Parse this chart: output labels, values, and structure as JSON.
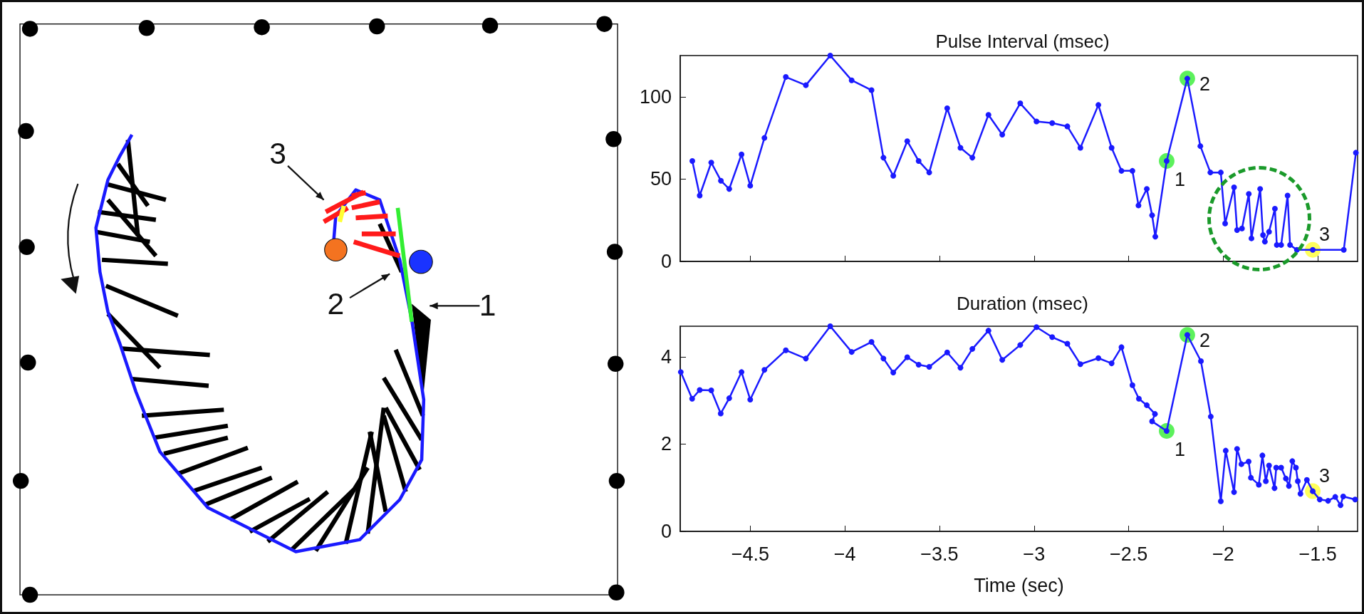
{
  "chart_data": [
    {
      "type": "other",
      "annotations": [
        "3",
        "2",
        "1"
      ]
    },
    {
      "type": "line",
      "title": "Pulse Interval (msec)",
      "marker": "circle",
      "tick_labels": "y",
      "xlim": [
        -4.87,
        -1.29
      ],
      "xticks": [
        -4.5,
        -4,
        -3.5,
        -3,
        -2.5,
        -2,
        -1.5
      ],
      "ylim": [
        0,
        125
      ],
      "yticks": [
        0,
        50,
        100
      ],
      "series": [
        {
          "color": "#1a1aff",
          "x": [
            -4.806,
            -4.767,
            -4.706,
            -4.655,
            -4.611,
            -4.546,
            -4.5,
            -4.425,
            -4.312,
            -4.206,
            -4.077,
            -3.964,
            -3.859,
            -3.796,
            -3.744,
            -3.67,
            -3.61,
            -3.554,
            -3.459,
            -3.389,
            -3.326,
            -3.241,
            -3.168,
            -3.073,
            -2.987,
            -2.904,
            -2.824,
            -2.755,
            -2.66,
            -2.59,
            -2.538,
            -2.48,
            -2.448,
            -2.404,
            -2.376,
            -2.359,
            -2.299,
            -2.19,
            -2.121,
            -2.068,
            -2.013,
            -1.99,
            -1.943,
            -1.927,
            -1.901,
            -1.865,
            -1.851,
            -1.805,
            -1.79,
            -1.78,
            -1.758,
            -1.727,
            -1.717,
            -1.694,
            -1.66,
            -1.647,
            -1.611,
            -1.527,
            -1.363,
            -1.299
          ],
          "values": [
            61,
            40,
            60,
            49,
            44,
            65,
            46,
            75,
            112,
            107,
            125,
            110,
            104,
            63,
            52,
            73,
            61,
            54,
            93,
            69,
            63,
            89,
            77,
            96,
            85,
            84,
            82,
            69,
            95,
            69,
            55,
            55,
            34,
            44,
            28,
            15,
            61,
            111,
            70,
            54,
            54,
            23,
            45,
            19,
            20,
            41,
            14,
            44,
            16,
            12,
            18,
            32,
            10,
            10,
            40,
            10,
            7,
            7,
            7,
            66
          ]
        },
        {
          "type": "scatter",
          "color": "#33ee33",
          "x": [
            -2.299,
            -2.19
          ],
          "values": [
            61,
            111
          ]
        },
        {
          "type": "scatter",
          "color": "#ffff33",
          "x": [
            -1.527
          ],
          "values": [
            7
          ]
        }
      ],
      "annotations": [
        {
          "text": "1",
          "x": -2.299,
          "y": 61
        },
        {
          "text": "2",
          "x": -2.19,
          "y": 111
        },
        {
          "text": "3",
          "x": -1.527,
          "y": 7
        }
      ]
    },
    {
      "type": "line",
      "title": "Duration (msec)",
      "xlabel": "Time (sec)",
      "marker": "circle",
      "xlim": [
        -4.87,
        -1.29
      ],
      "xticks": [
        {
          "value": -4.5,
          "label": "−4.5"
        },
        {
          "value": -4,
          "label": "−4"
        },
        {
          "value": -3.5,
          "label": "−3.5"
        },
        {
          "value": -3,
          "label": "−3"
        },
        {
          "value": -2.5,
          "label": "−2.5"
        },
        {
          "value": -2,
          "label": "−2"
        },
        {
          "value": -1.5,
          "label": "−1.5"
        }
      ],
      "ylim": [
        0,
        4.7
      ],
      "yticks": [
        0,
        2,
        4
      ],
      "series": [
        {
          "color": "#1a1aff",
          "x": [
            -4.867,
            -4.807,
            -4.767,
            -4.706,
            -4.656,
            -4.611,
            -4.546,
            -4.5,
            -4.425,
            -4.312,
            -4.206,
            -4.077,
            -3.964,
            -3.859,
            -3.796,
            -3.744,
            -3.67,
            -3.61,
            -3.554,
            -3.459,
            -3.389,
            -3.326,
            -3.241,
            -3.168,
            -3.073,
            -2.987,
            -2.904,
            -2.824,
            -2.755,
            -2.66,
            -2.59,
            -2.538,
            -2.48,
            -2.446,
            -2.404,
            -2.361,
            -2.376,
            -2.299,
            -2.19,
            -2.118,
            -2.066,
            -2.013,
            -1.987,
            -1.943,
            -1.927,
            -1.904,
            -1.866,
            -1.854,
            -1.812,
            -1.793,
            -1.775,
            -1.758,
            -1.729,
            -1.72,
            -1.694,
            -1.669,
            -1.653,
            -1.635,
            -1.616,
            -1.606,
            -1.592,
            -1.558,
            -1.527,
            -1.49,
            -1.446,
            -1.408,
            -1.38,
            -1.366,
            -1.303
          ],
          "values": [
            3.65,
            3.04,
            3.24,
            3.23,
            2.7,
            3.05,
            3.65,
            3.02,
            3.7,
            4.15,
            3.96,
            4.7,
            4.11,
            4.34,
            3.96,
            3.64,
            3.99,
            3.82,
            3.77,
            4.1,
            3.75,
            4.18,
            4.6,
            3.93,
            4.27,
            4.68,
            4.45,
            4.3,
            3.83,
            3.97,
            3.85,
            4.22,
            3.35,
            3.04,
            2.89,
            2.69,
            2.52,
            2.3,
            4.5,
            3.9,
            2.63,
            0.69,
            1.85,
            0.9,
            1.89,
            1.54,
            1.6,
            1.23,
            1.07,
            1.74,
            1.15,
            1.51,
            0.99,
            1.46,
            1.46,
            1.21,
            1.04,
            1.61,
            1.46,
            1.15,
            0.86,
            1.18,
            0.92,
            0.73,
            0.7,
            0.79,
            0.6,
            0.8,
            0.73
          ]
        },
        {
          "type": "scatter",
          "color": "#33ee33",
          "x": [
            -2.299,
            -2.19
          ],
          "values": [
            2.3,
            4.5
          ]
        },
        {
          "type": "scatter",
          "color": "#ffff33",
          "x": [
            -1.527
          ],
          "values": [
            0.92
          ]
        }
      ],
      "annotations": [
        {
          "text": "1",
          "x": -2.299,
          "y": 2.3
        },
        {
          "text": "2",
          "x": -2.19,
          "y": 4.5
        },
        {
          "text": "3",
          "x": -1.527,
          "y": 0.92
        }
      ]
    }
  ]
}
